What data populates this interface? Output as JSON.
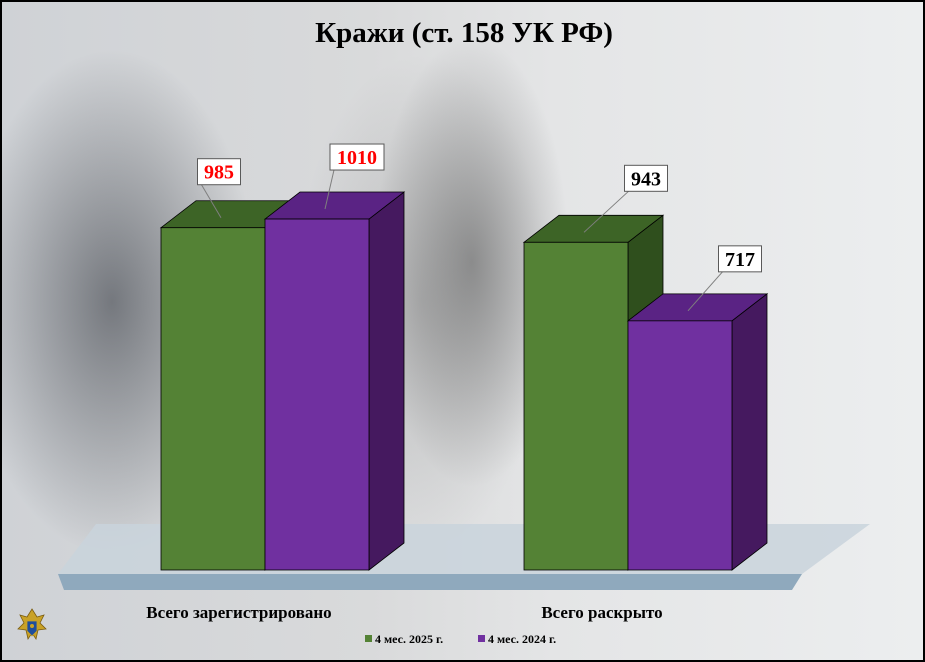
{
  "chart_data": {
    "type": "bar",
    "title": "Кражи (ст. 158 УК РФ)",
    "categories": [
      "Всего зарегистрировано",
      "Всего раскрыто"
    ],
    "series": [
      {
        "name": "4 мес. 2025 г.",
        "values": [
          985,
          943
        ],
        "color": "#548235",
        "label_colors": [
          "#ff0000",
          "#000000"
        ]
      },
      {
        "name": "4 мес. 2024 г.",
        "values": [
          1010,
          717
        ],
        "color": "#7030a0",
        "label_colors": [
          "#ff0000",
          "#000000"
        ]
      }
    ],
    "ylim": [
      0,
      1200
    ],
    "grid": false,
    "legend_position": "bottom"
  },
  "logo": {
    "name": "prosecutor-emblem-icon"
  }
}
